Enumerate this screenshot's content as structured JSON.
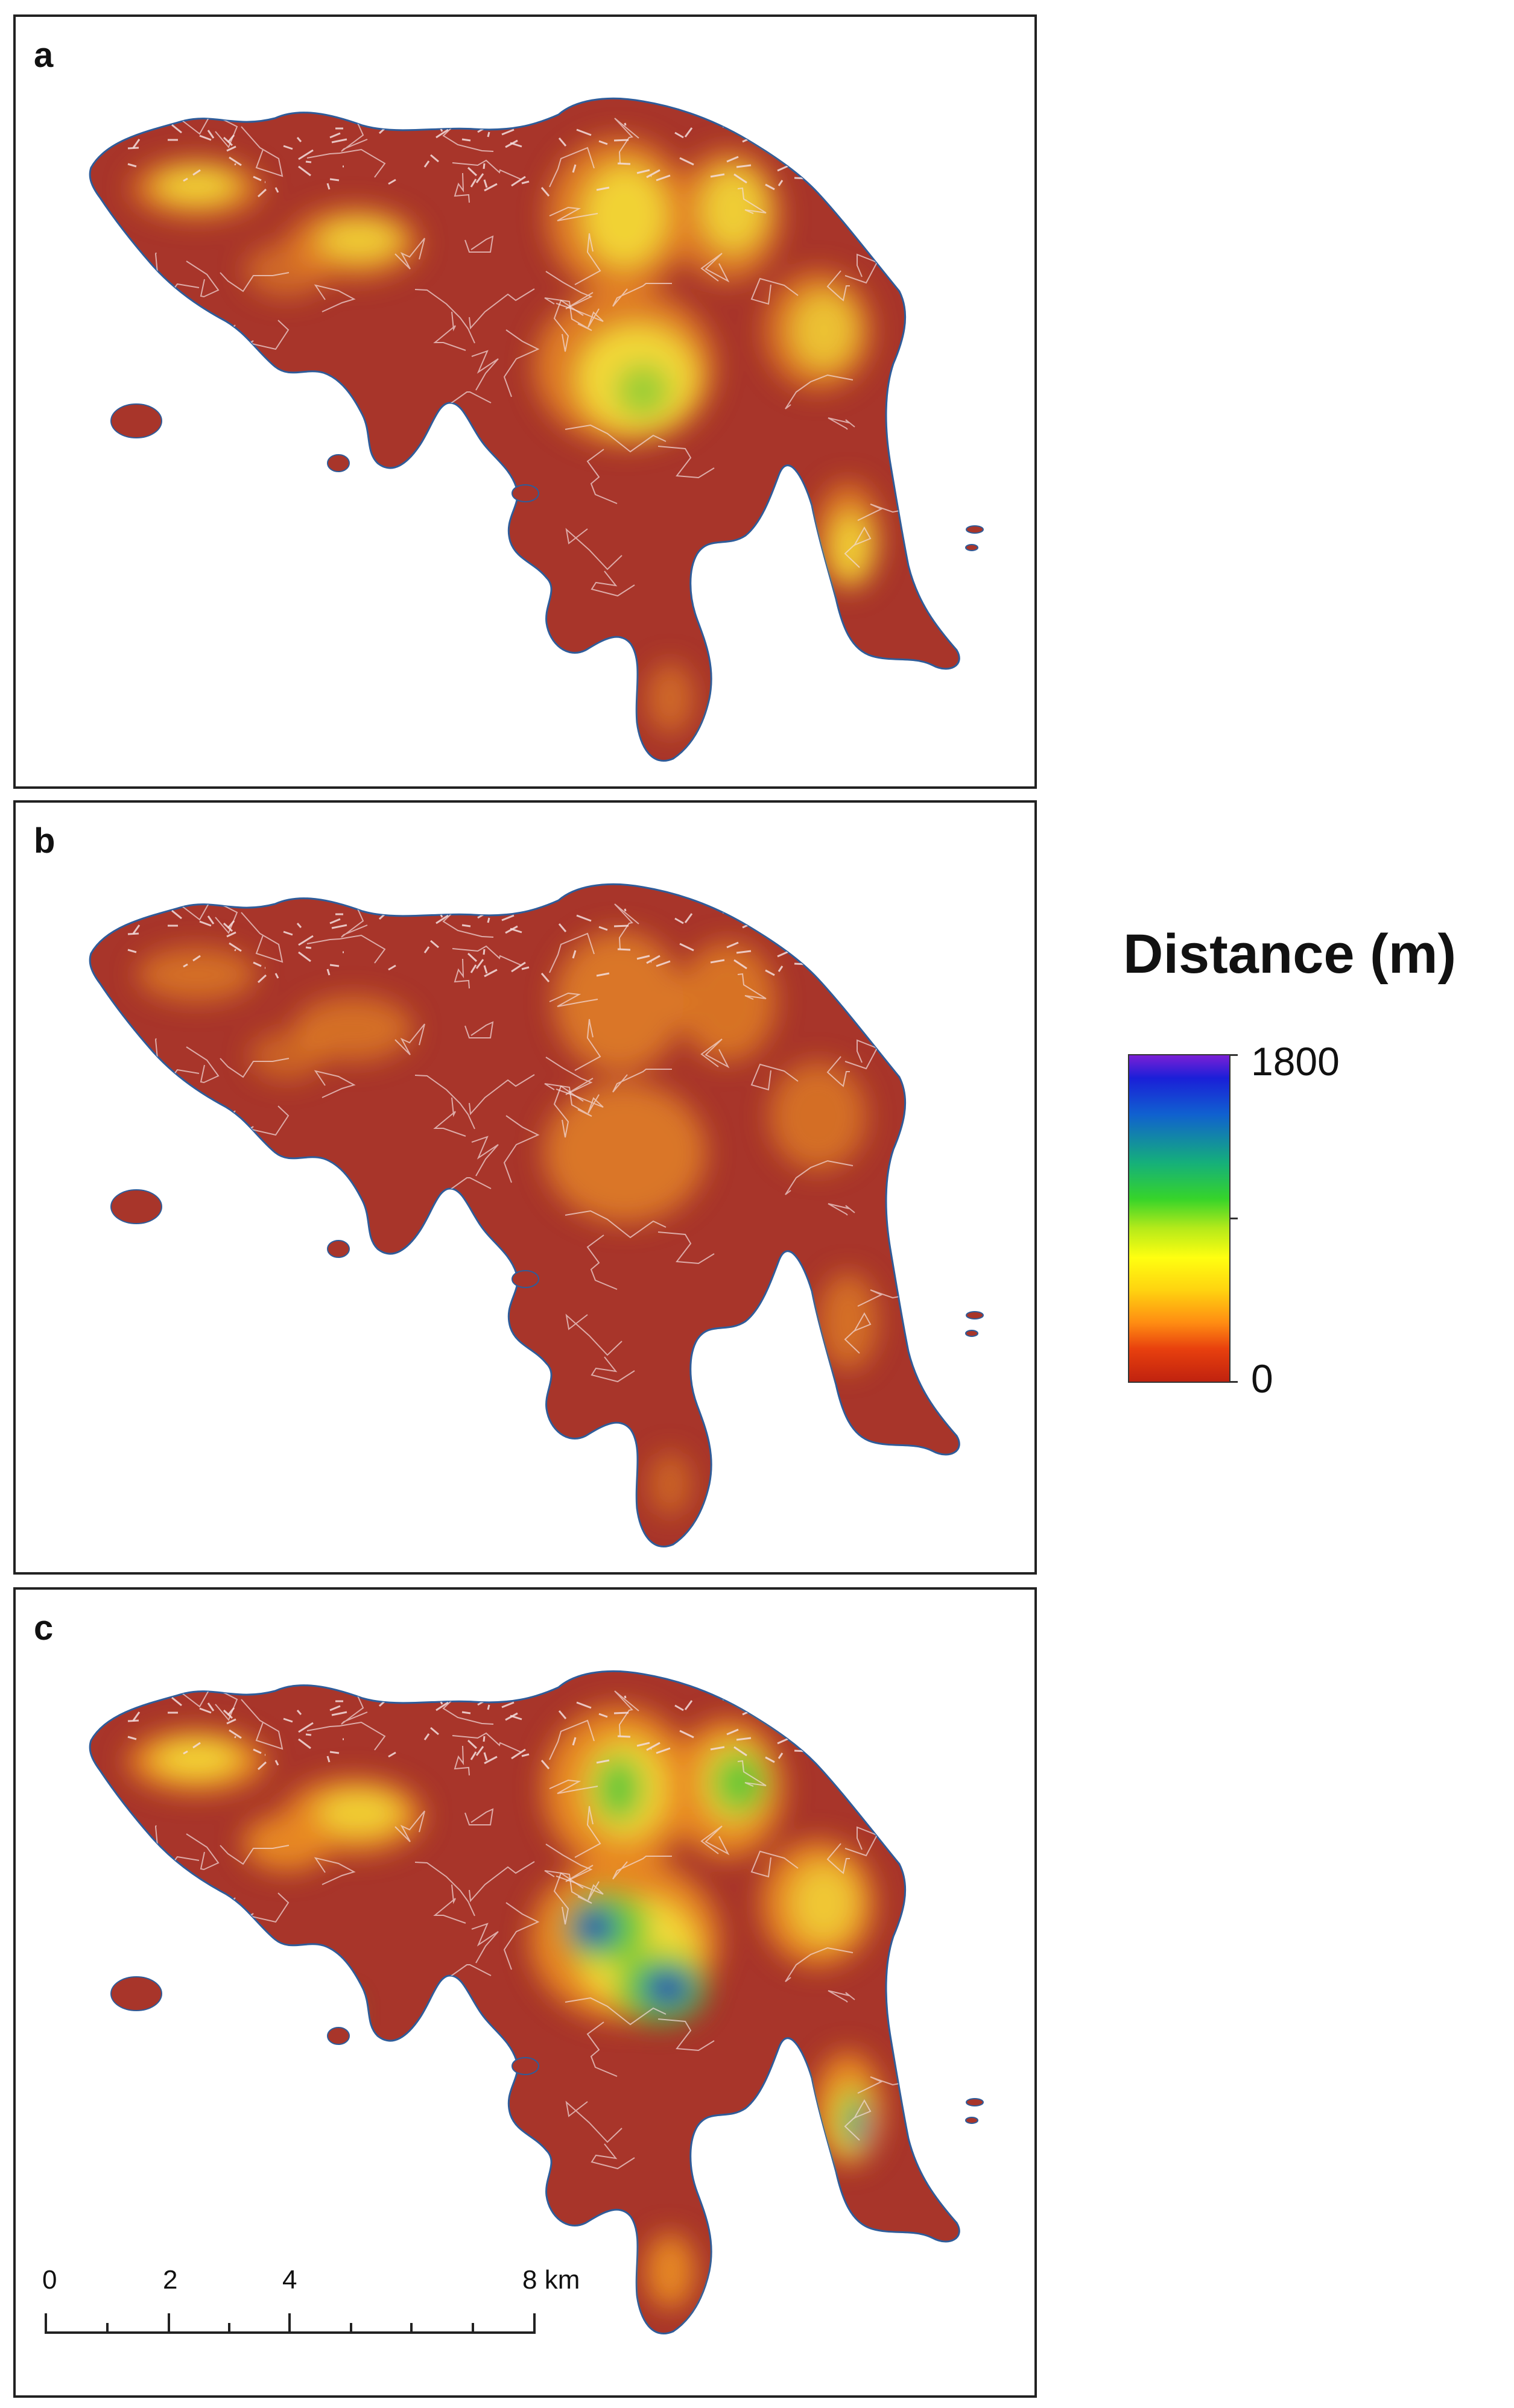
{
  "panels": [
    {
      "label": "a"
    },
    {
      "label": "b"
    },
    {
      "label": "c"
    }
  ],
  "legend": {
    "title": "Distance (m)",
    "max_label": "1800",
    "min_label": "0",
    "colors": [
      "#7a1fd6",
      "#1a1fd8",
      "#1060d0",
      "#15b07a",
      "#36d42a",
      "#b5ea1a",
      "#ffff10",
      "#ffd310",
      "#ff8c12",
      "#e8400e",
      "#c0220f"
    ]
  },
  "scale_bar": {
    "labels": [
      "0",
      "2",
      "4",
      "8 km"
    ],
    "unit": "km"
  },
  "colors": {
    "base": "#a8352a",
    "roads": "#f4dede",
    "coast": "#2e5c9a",
    "hot_orange": "#e98a24",
    "hot_yellow": "#f4e23a",
    "hot_green": "#55c637",
    "hot_blue": "#1f3cbf"
  }
}
